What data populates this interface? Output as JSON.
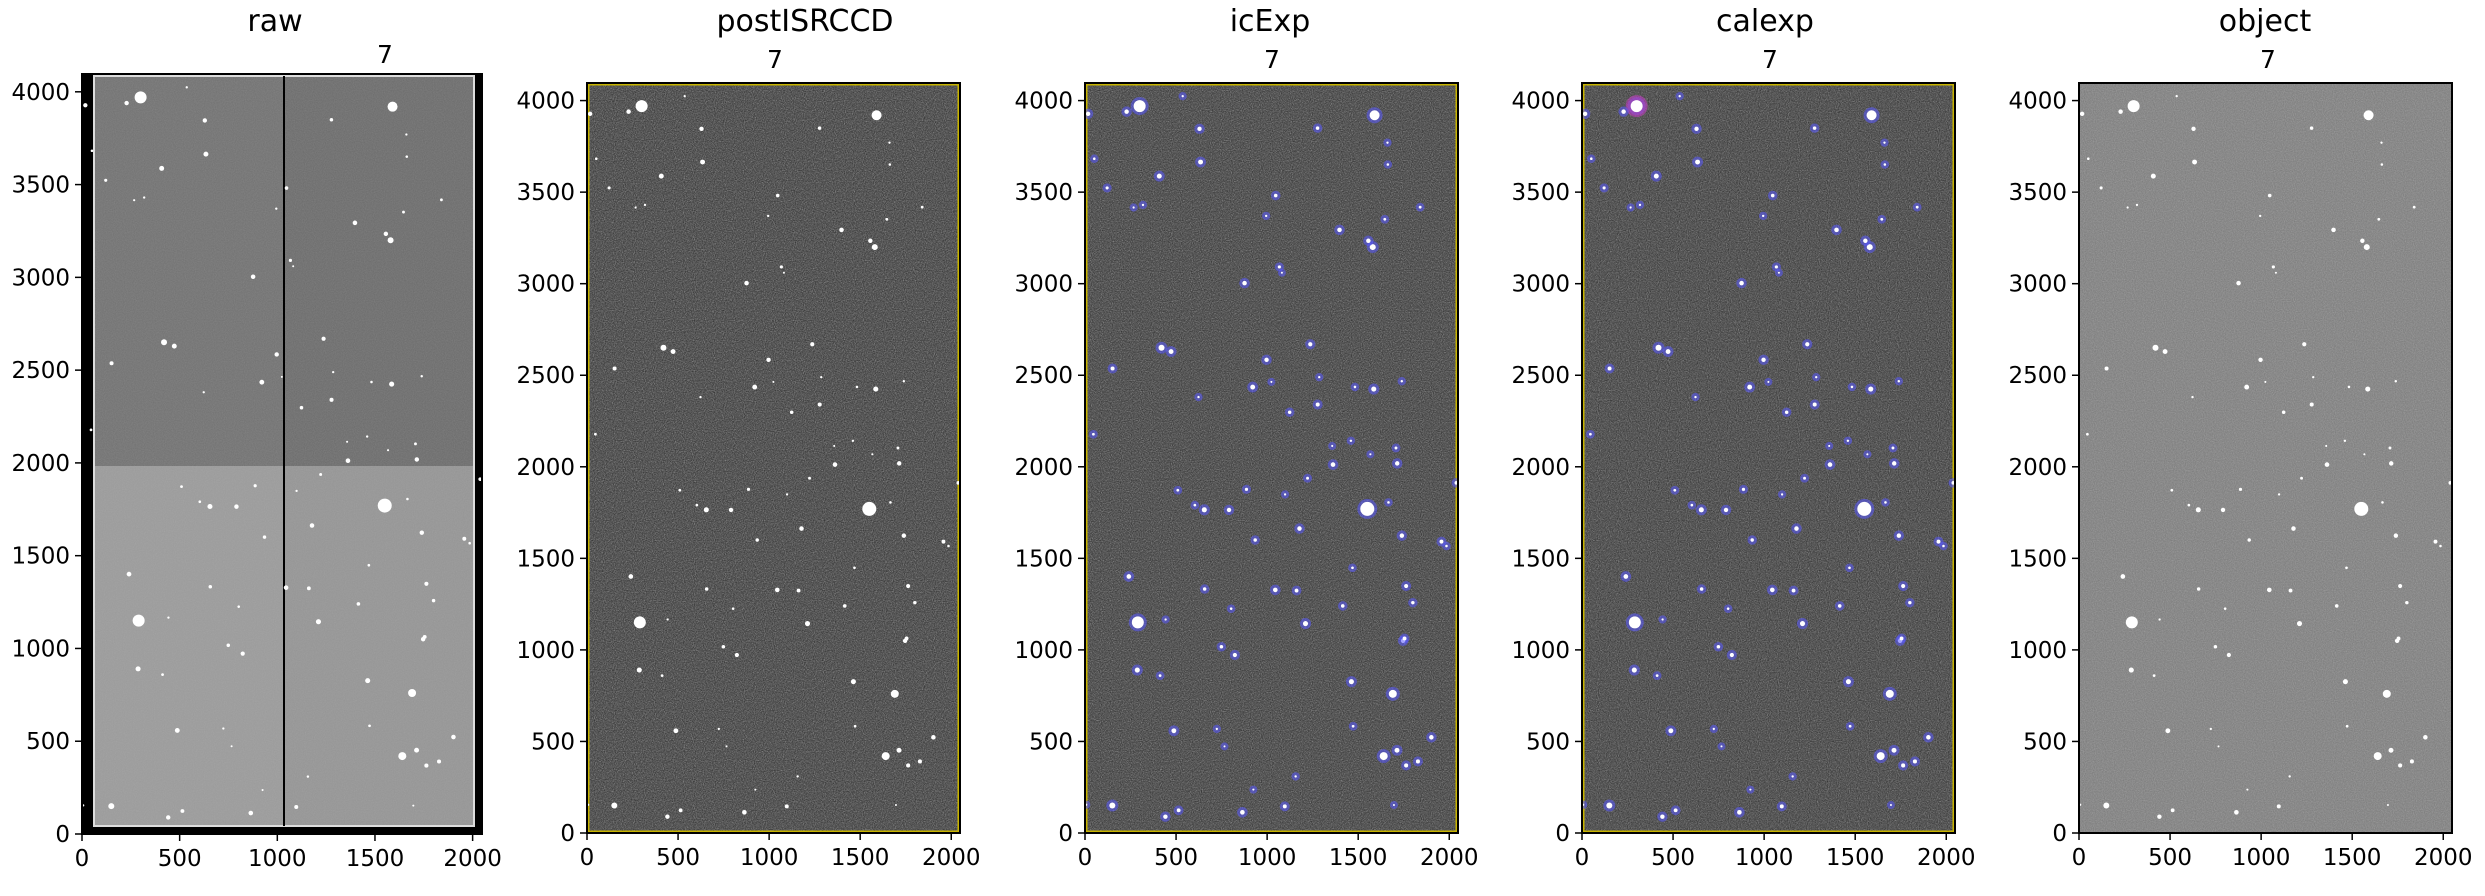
{
  "figure": {
    "panels": [
      {
        "id": "raw",
        "title": "raw",
        "subtitle": "7",
        "style": "raw"
      },
      {
        "id": "postISRCCD",
        "title": "postISRCCD",
        "subtitle": "7",
        "style": "dark"
      },
      {
        "id": "icExp",
        "title": "icExp",
        "subtitle": "7",
        "style": "mask"
      },
      {
        "id": "calexp",
        "title": "calexp",
        "subtitle": "7",
        "style": "mask2"
      },
      {
        "id": "object",
        "title": "object",
        "subtitle": "7",
        "style": "object"
      }
    ],
    "x_ticks": [
      "0",
      "500",
      "1000",
      "1500",
      "2000"
    ],
    "y_ticks": [
      "0",
      "500",
      "1000",
      "1500",
      "2000",
      "2500",
      "3000",
      "3500",
      "4000"
    ],
    "x_range": [
      0,
      2048
    ],
    "y_range": [
      0,
      4096
    ],
    "colors": {
      "mask_detected": "#5a5aff",
      "edge_mask": "#c8b400",
      "bright_mask": "#c040c0"
    }
  }
}
